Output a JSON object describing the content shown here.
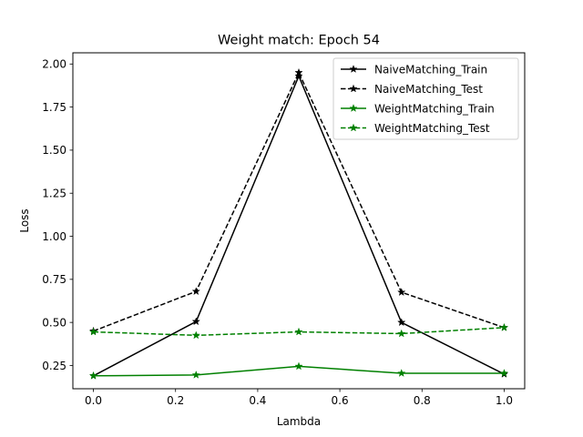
{
  "chart_data": {
    "type": "line",
    "title": "Weight match: Epoch 54",
    "xlabel": "Lambda",
    "ylabel": "Loss",
    "x": [
      0.0,
      0.25,
      0.5,
      0.75,
      1.0
    ],
    "xlim": [
      -0.05,
      1.05
    ],
    "ylim": [
      0.115,
      2.065
    ],
    "xticks": [
      0.0,
      0.2,
      0.4,
      0.6,
      0.8,
      1.0
    ],
    "xtick_labels": [
      "0.0",
      "0.2",
      "0.4",
      "0.6",
      "0.8",
      "1.0"
    ],
    "yticks": [
      0.25,
      0.5,
      0.75,
      1.0,
      1.25,
      1.5,
      1.75,
      2.0
    ],
    "ytick_labels": [
      "0.25",
      "0.50",
      "0.75",
      "1.00",
      "1.25",
      "1.50",
      "1.75",
      "2.00"
    ],
    "grid": false,
    "legend_position": "top-right",
    "series": [
      {
        "name": "NaiveMatching_Train",
        "values": [
          0.19,
          0.505,
          1.93,
          0.5,
          0.2
        ],
        "color": "#000000",
        "dash": "solid",
        "marker": "star"
      },
      {
        "name": "NaiveMatching_Test",
        "values": [
          0.45,
          0.68,
          1.95,
          0.675,
          0.47
        ],
        "color": "#000000",
        "dash": "dashed",
        "marker": "star"
      },
      {
        "name": "WeightMatching_Train",
        "values": [
          0.19,
          0.195,
          0.245,
          0.205,
          0.205
        ],
        "color": "#008000",
        "dash": "solid",
        "marker": "star"
      },
      {
        "name": "WeightMatching_Test",
        "values": [
          0.445,
          0.425,
          0.445,
          0.435,
          0.47
        ],
        "color": "#008000",
        "dash": "dashed",
        "marker": "star"
      }
    ]
  }
}
